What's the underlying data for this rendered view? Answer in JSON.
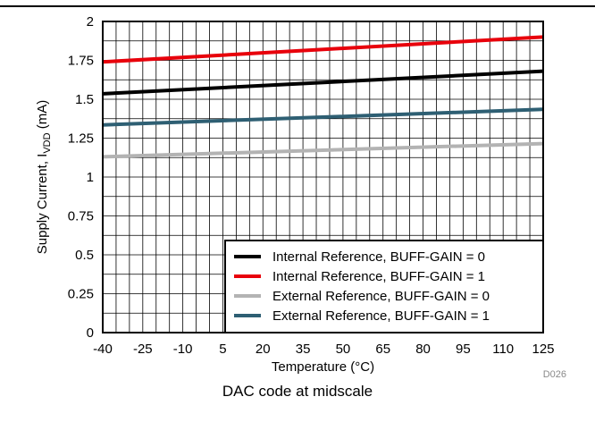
{
  "chart_data": {
    "type": "line",
    "xlabel": "Temperature (°C)",
    "ylabel_main": "Supply Current, I",
    "ylabel_sub": "VDD",
    "ylabel_tail": " (mA)",
    "x_ticks": [
      "-40",
      "-25",
      "-10",
      "5",
      "20",
      "35",
      "50",
      "65",
      "80",
      "95",
      "110",
      "125"
    ],
    "y_ticks": [
      "0",
      "0.25",
      "0.5",
      "0.75",
      "1",
      "1.25",
      "1.5",
      "1.75",
      "2"
    ],
    "xlim": [
      -40,
      125
    ],
    "ylim": [
      0,
      2
    ],
    "grid": true,
    "legend_position": "bottom-right",
    "series": [
      {
        "name": "Internal Reference, BUFF-GAIN = 0",
        "color": "#000000",
        "x": [
          -40,
          125
        ],
        "y": [
          1.535,
          1.68
        ]
      },
      {
        "name": "Internal Reference, BUFF-GAIN = 1",
        "color": "#e8000b",
        "x": [
          -40,
          125
        ],
        "y": [
          1.74,
          1.9
        ]
      },
      {
        "name": "External Reference, BUFF-GAIN = 0",
        "color": "#b3b3b3",
        "x": [
          -40,
          125
        ],
        "y": [
          1.13,
          1.215
        ]
      },
      {
        "name": "External Reference, BUFF-GAIN = 1",
        "color": "#2e5f73",
        "x": [
          -40,
          125
        ],
        "y": [
          1.335,
          1.435
        ]
      }
    ]
  },
  "figure_code": "D026",
  "caption": "DAC code at midscale"
}
